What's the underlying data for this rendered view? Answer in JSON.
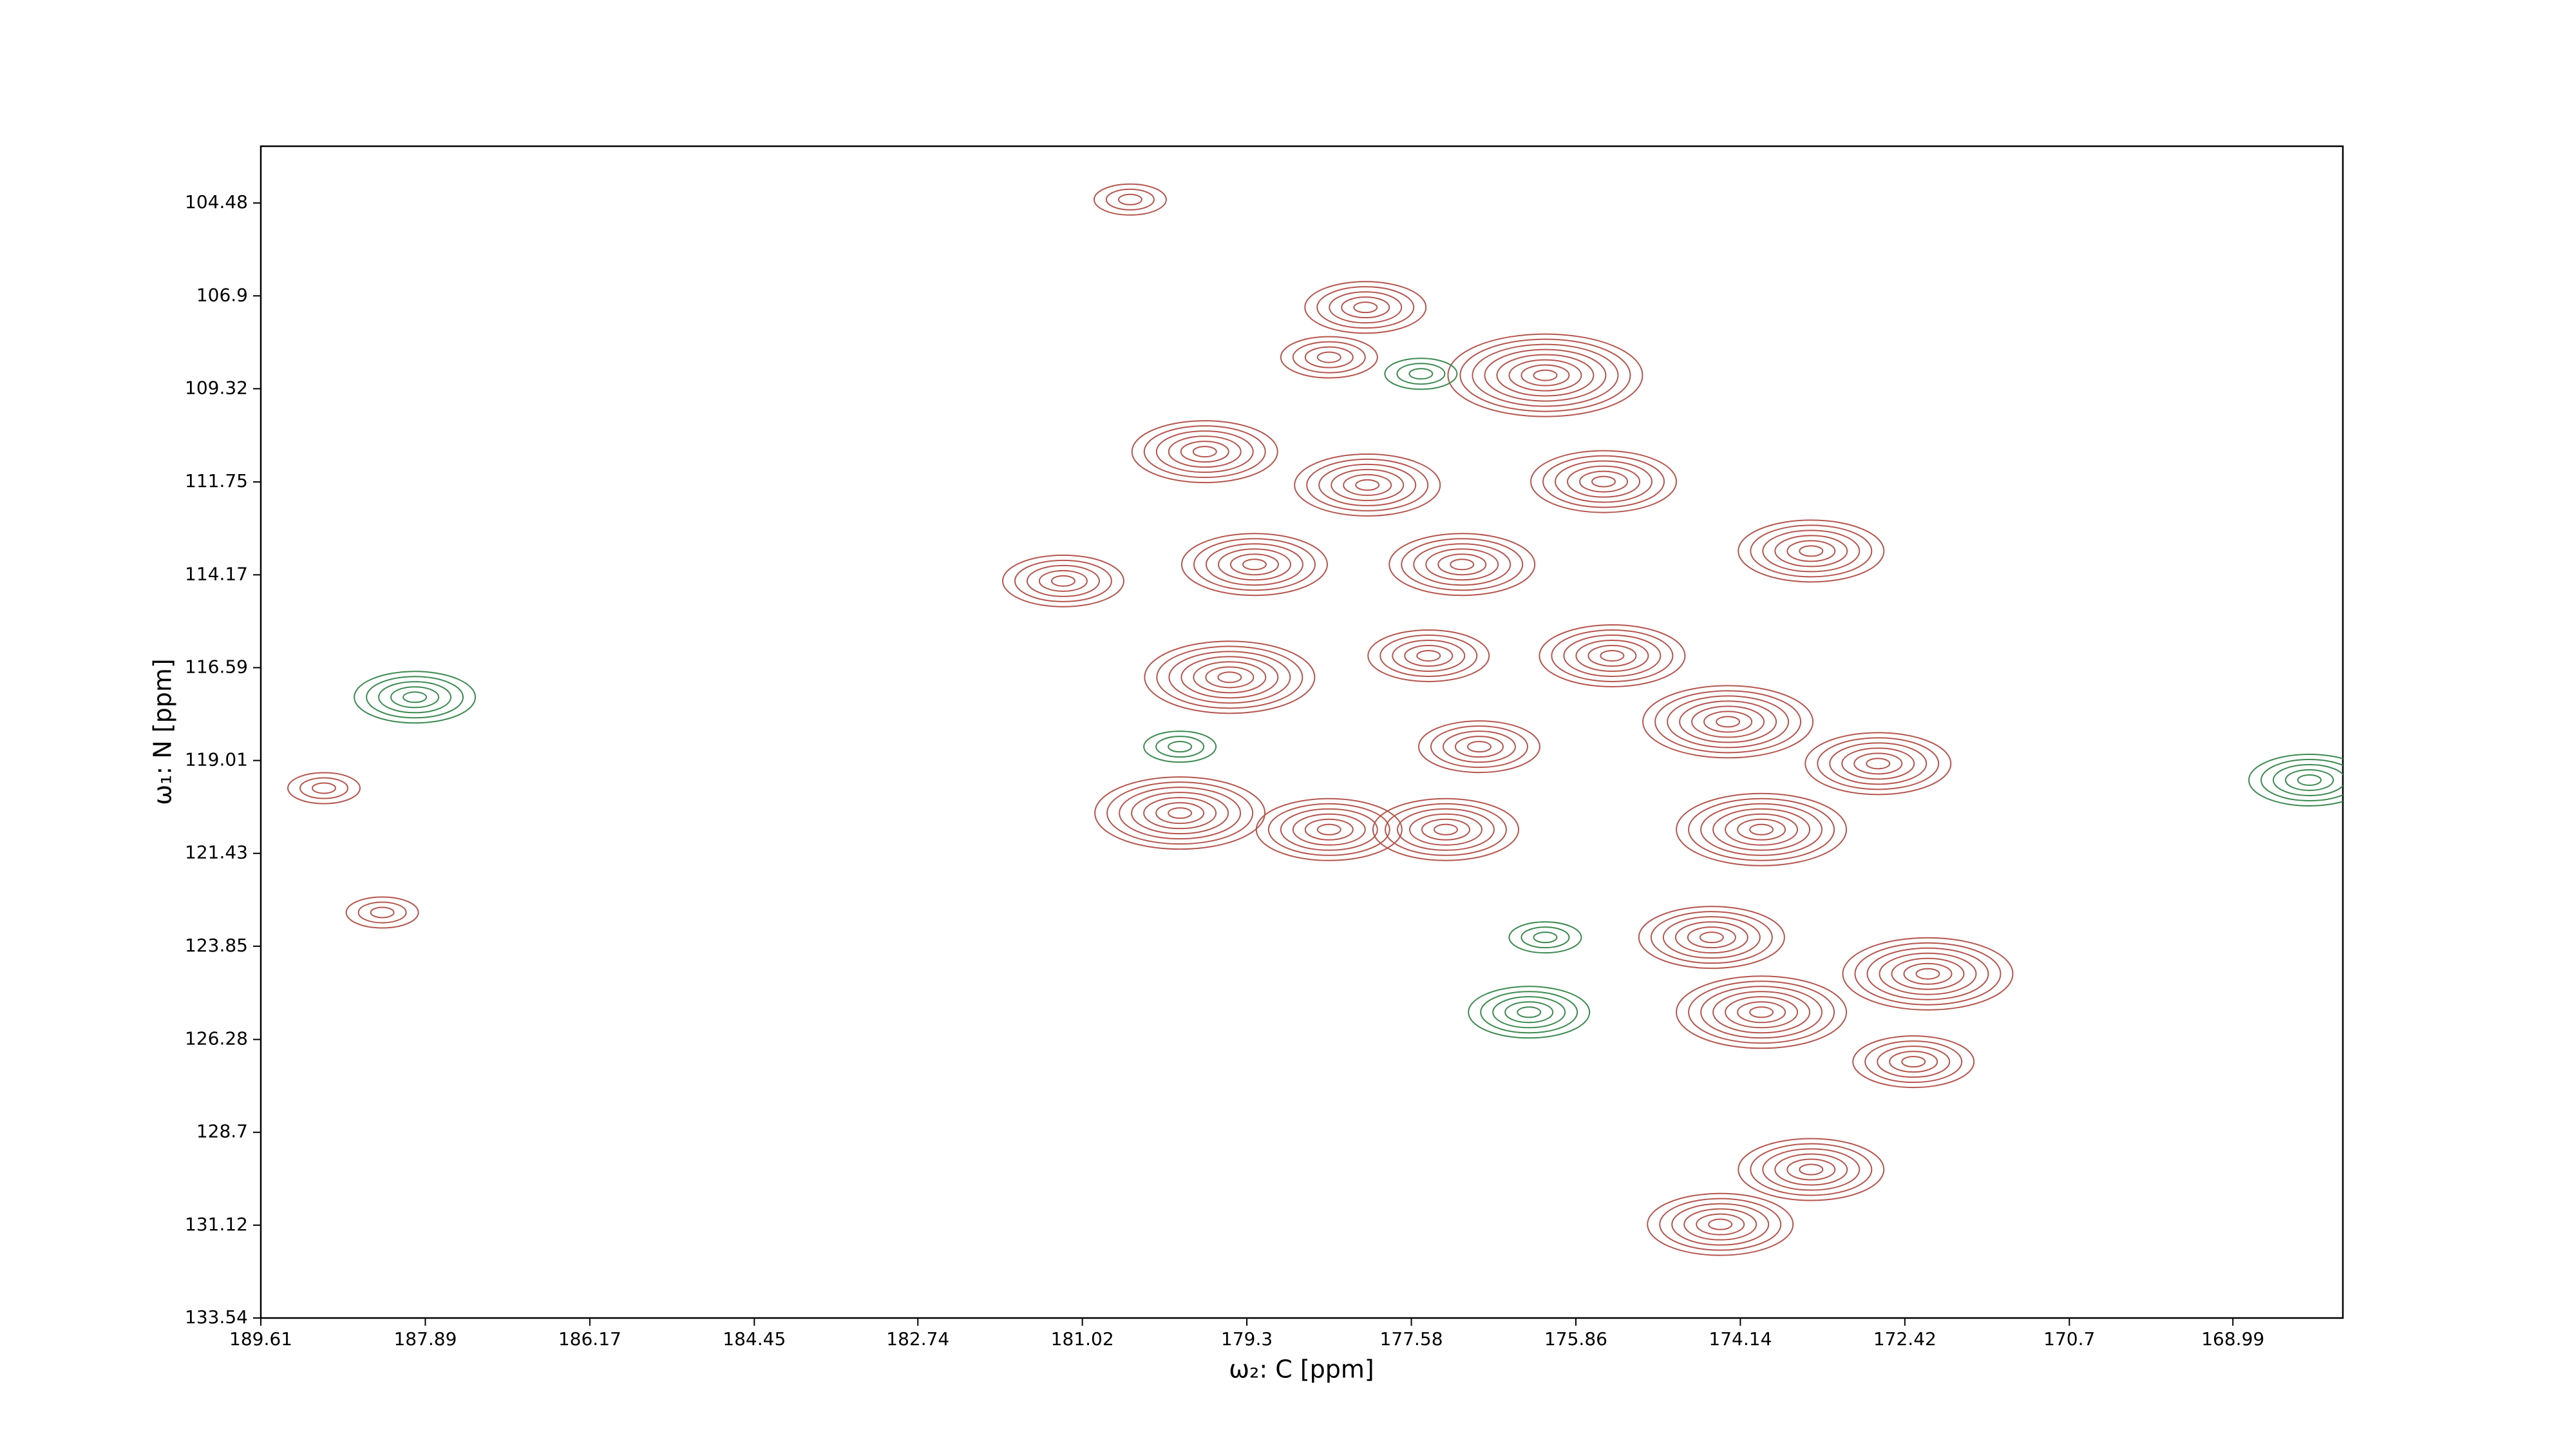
{
  "chart_data": {
    "type": "contour",
    "xlabel": "ω₂: C [ppm]",
    "ylabel": "ω₁: N [ppm]",
    "xlim": [
      189.61,
      167.84
    ],
    "ylim": [
      133.54,
      103.0
    ],
    "xticks": [
      189.61,
      187.89,
      186.17,
      184.45,
      182.74,
      181.02,
      179.3,
      177.58,
      175.86,
      174.14,
      172.42,
      170.7,
      168.99
    ],
    "yticks": [
      104.48,
      106.9,
      109.32,
      111.75,
      114.17,
      116.59,
      119.01,
      121.43,
      123.85,
      126.28,
      128.7,
      131.12,
      133.54
    ],
    "series": [
      {
        "color": "#b5564e",
        "x": [
          176.18,
          178.06,
          178.44,
          179.74,
          178.04,
          175.57,
          179.22,
          177.05,
          181.22,
          173.4,
          179.48,
          177.4,
          175.48,
          174.27,
          176.87,
          180.0,
          178.44,
          177.22,
          173.92,
          172.7,
          174.44,
          172.18,
          173.92,
          172.33,
          173.4,
          174.35,
          188.95,
          188.34,
          180.52
        ],
        "y": [
          108.97,
          107.2,
          108.5,
          110.96,
          111.83,
          111.74,
          113.9,
          113.9,
          114.33,
          113.55,
          116.84,
          116.28,
          116.28,
          118.0,
          118.65,
          120.38,
          120.81,
          120.81,
          120.81,
          119.09,
          123.62,
          124.57,
          125.57,
          126.86,
          129.67,
          131.1,
          119.73,
          122.97,
          104.39
        ],
        "values": [
          8,
          5,
          4,
          6,
          6,
          6,
          6,
          6,
          5,
          6,
          7,
          5,
          6,
          7,
          5,
          7,
          6,
          6,
          7,
          6,
          6,
          7,
          7,
          5,
          6,
          6,
          3,
          3,
          3
        ]
      },
      {
        "color": "#3c8a50",
        "x": [
          176.35,
          188.0,
          168.19,
          176.18,
          177.48,
          180.0
        ],
        "y": [
          125.57,
          117.36,
          119.52,
          123.62,
          108.93,
          118.65
        ],
        "values": [
          5,
          5,
          5,
          3,
          3,
          3
        ]
      }
    ]
  }
}
